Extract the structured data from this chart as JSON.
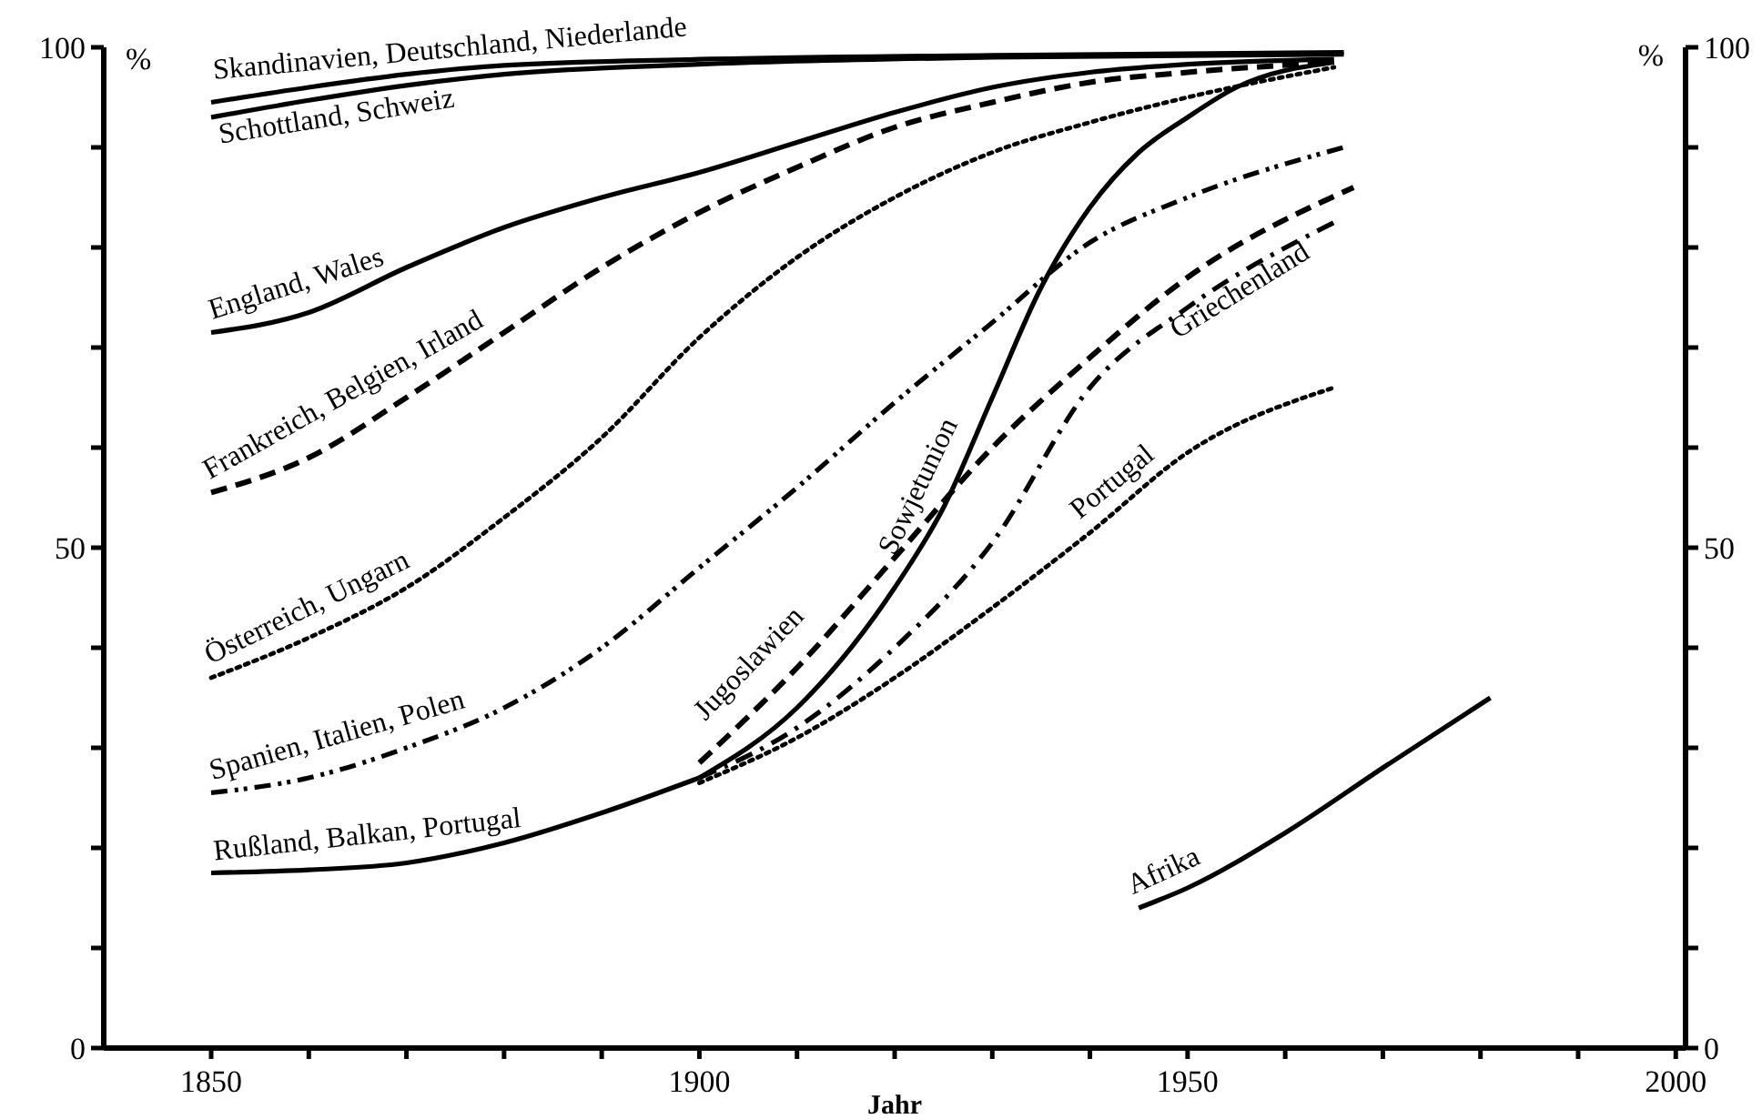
{
  "chart_data": {
    "type": "line",
    "xlabel": "Jahr",
    "ylabel": "%",
    "y2label": "%",
    "xlim": [
      1839,
      2001
    ],
    "ylim": [
      0,
      100
    ],
    "y2lim": [
      0,
      100
    ],
    "xticks": [
      1850,
      {
        "value": 1860,
        "label": null
      },
      {
        "value": 1870,
        "label": null
      },
      {
        "value": 1880,
        "label": null
      },
      {
        "value": 1890,
        "label": null
      },
      1900,
      {
        "value": 1910,
        "label": null
      },
      {
        "value": 1920,
        "label": null
      },
      {
        "value": 1930,
        "label": null
      },
      {
        "value": 1940,
        "label": null
      },
      1950,
      {
        "value": 1960,
        "label": null
      },
      {
        "value": 1970,
        "label": null
      },
      {
        "value": 1980,
        "label": null
      },
      {
        "value": 1990,
        "label": null
      },
      2000
    ],
    "yticks": [
      0,
      {
        "value": 10,
        "label": null
      },
      {
        "value": 20,
        "label": null
      },
      {
        "value": 30,
        "label": null
      },
      {
        "value": 40,
        "label": null
      },
      50,
      {
        "value": 60,
        "label": null
      },
      {
        "value": 70,
        "label": null
      },
      {
        "value": 80,
        "label": null
      },
      {
        "value": 90,
        "label": null
      },
      100
    ],
    "y2ticks": [
      0,
      {
        "value": 10,
        "label": null
      },
      {
        "value": 20,
        "label": null
      },
      {
        "value": 30,
        "label": null
      },
      {
        "value": 40,
        "label": null
      },
      50,
      {
        "value": 60,
        "label": null
      },
      {
        "value": 70,
        "label": null
      },
      {
        "value": 80,
        "label": null
      },
      {
        "value": 90,
        "label": null
      },
      100
    ],
    "grid": false,
    "legend": false,
    "marker": "none",
    "series": [
      {
        "name": "Skandinavien, Deutschland, Niederlande",
        "color": "#000000",
        "line_style": "solid",
        "x": [
          1850,
          1860,
          1870,
          1880,
          1900,
          1930,
          1966
        ],
        "values": [
          94.5,
          96,
          97.3,
          98.2,
          98.8,
          99.2,
          99.5
        ]
      },
      {
        "name": "Schottland, Schweiz",
        "color": "#000000",
        "line_style": "solid",
        "x": [
          1850,
          1860,
          1870,
          1880,
          1900,
          1930,
          1966
        ],
        "values": [
          93,
          94.7,
          96.2,
          97.3,
          98.3,
          99,
          99.3
        ]
      },
      {
        "name": "England, Wales",
        "color": "#000000",
        "line_style": "solid",
        "x": [
          1850,
          1860,
          1870,
          1880,
          1890,
          1900,
          1910,
          1920,
          1930,
          1940,
          1950,
          1965
        ],
        "values": [
          71.5,
          73.5,
          78,
          82,
          85,
          87.5,
          90.5,
          93.5,
          96,
          97.5,
          98.3,
          98.8
        ]
      },
      {
        "name": "Frankreich, Belgien, Irland",
        "color": "#000000",
        "line_style": "dashed",
        "x": [
          1850,
          1860,
          1870,
          1880,
          1890,
          1900,
          1910,
          1920,
          1930,
          1940,
          1950,
          1965
        ],
        "values": [
          55.5,
          59,
          65,
          71.5,
          78,
          83.5,
          88,
          92,
          94.5,
          96.5,
          97.5,
          98.5
        ]
      },
      {
        "name": "Österreich, Ungarn",
        "color": "#000000",
        "line_style": "dotted",
        "x": [
          1850,
          1860,
          1870,
          1880,
          1890,
          1900,
          1910,
          1920,
          1930,
          1940,
          1950,
          1965
        ],
        "values": [
          37,
          41,
          46,
          53,
          61,
          71,
          79,
          85,
          89.5,
          92.5,
          95,
          98
        ]
      },
      {
        "name": "Spanien, Italien, Polen",
        "color": "#000000",
        "line_style": "dashdotdot",
        "x": [
          1850,
          1860,
          1870,
          1880,
          1890,
          1900,
          1910,
          1920,
          1930,
          1940,
          1950,
          1966
        ],
        "values": [
          25.5,
          27,
          30,
          34,
          40,
          48,
          56,
          64.5,
          72.5,
          80.5,
          85,
          90
        ]
      },
      {
        "name": "Rußland, Balkan, Portugal",
        "color": "#000000",
        "line_style": "solid",
        "x": [
          1850,
          1860,
          1870,
          1880,
          1890,
          1900
        ],
        "values": [
          17.5,
          17.8,
          18.5,
          20.5,
          23.5,
          27
        ]
      },
      {
        "name": "Sowjetunion",
        "color": "#000000",
        "line_style": "solid",
        "x": [
          1900,
          1910,
          1920,
          1925,
          1930,
          1935,
          1940,
          1945,
          1950,
          1955,
          1965
        ],
        "values": [
          27,
          34,
          46,
          54,
          65,
          76,
          84,
          89.5,
          93,
          96,
          98.5
        ]
      },
      {
        "name": "Jugoslawien",
        "color": "#000000",
        "line_style": "dashed",
        "x": [
          1900,
          1910,
          1920,
          1930,
          1940,
          1950,
          1967
        ],
        "values": [
          28.5,
          38,
          49,
          60,
          69,
          77,
          86
        ]
      },
      {
        "name": "Griechenland",
        "color": "#000000",
        "line_style": "dashdot",
        "x": [
          1900,
          1910,
          1920,
          1930,
          1940,
          1950,
          1965
        ],
        "values": [
          27,
          32,
          40,
          50.5,
          66,
          74,
          82.5
        ]
      },
      {
        "name": "Portugal",
        "color": "#000000",
        "line_style": "dotted",
        "x": [
          1900,
          1910,
          1920,
          1930,
          1940,
          1950,
          1965
        ],
        "values": [
          26.5,
          31,
          37,
          44,
          51.5,
          59.5,
          66
        ]
      },
      {
        "name": "Afrika",
        "color": "#000000",
        "line_style": "solid",
        "x": [
          1945,
          1950,
          1960,
          1970,
          1981
        ],
        "values": [
          14,
          16,
          21.5,
          28,
          35
        ]
      }
    ]
  }
}
